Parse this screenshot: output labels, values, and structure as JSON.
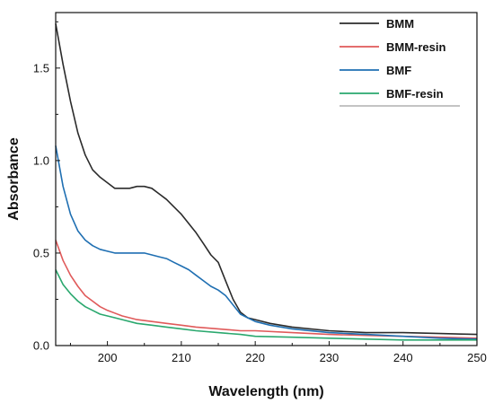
{
  "chart_data": {
    "type": "line",
    "xlabel": "Wavelength (nm)",
    "ylabel": "Absorbance",
    "xlim": [
      193,
      250
    ],
    "ylim": [
      0,
      1.8
    ],
    "xticks": [
      200,
      210,
      220,
      230,
      240,
      250
    ],
    "yticks": [
      0.0,
      0.5,
      1.0,
      1.5
    ],
    "xtick_labels": [
      "200",
      "210",
      "220",
      "230",
      "240",
      "250"
    ],
    "ytick_labels": [
      "0.0",
      "0.5",
      "1.0",
      "1.5"
    ],
    "grid": false,
    "legend_position": "top-right",
    "series": [
      {
        "name": "BMM",
        "color": "#2b2b2b",
        "x": [
          193,
          194,
          195,
          196,
          197,
          198,
          199,
          200,
          201,
          202,
          203,
          204,
          205,
          206,
          207,
          208,
          209,
          210,
          211,
          212,
          213,
          214,
          215,
          216,
          217,
          218,
          219,
          220,
          222,
          225,
          230,
          235,
          240,
          245,
          250
        ],
        "y": [
          1.74,
          1.52,
          1.32,
          1.15,
          1.03,
          0.95,
          0.91,
          0.88,
          0.85,
          0.85,
          0.85,
          0.86,
          0.86,
          0.85,
          0.82,
          0.79,
          0.75,
          0.71,
          0.66,
          0.61,
          0.55,
          0.49,
          0.45,
          0.35,
          0.25,
          0.18,
          0.15,
          0.14,
          0.12,
          0.1,
          0.08,
          0.07,
          0.07,
          0.065,
          0.06
        ]
      },
      {
        "name": "BMM-resin",
        "color": "#e05a5a",
        "x": [
          193,
          194,
          195,
          196,
          197,
          198,
          199,
          200,
          202,
          204,
          206,
          208,
          210,
          212,
          215,
          218,
          220,
          225,
          230,
          235,
          240,
          245,
          250
        ],
        "y": [
          0.57,
          0.46,
          0.38,
          0.32,
          0.27,
          0.24,
          0.21,
          0.19,
          0.16,
          0.14,
          0.13,
          0.12,
          0.11,
          0.1,
          0.09,
          0.08,
          0.08,
          0.07,
          0.06,
          0.055,
          0.05,
          0.045,
          0.04
        ]
      },
      {
        "name": "BMF",
        "color": "#1f6fb2",
        "x": [
          193,
          194,
          195,
          196,
          197,
          198,
          199,
          200,
          201,
          202,
          203,
          204,
          205,
          206,
          207,
          208,
          209,
          210,
          211,
          212,
          213,
          214,
          215,
          216,
          217,
          218,
          219,
          220,
          222,
          225,
          230,
          235,
          240,
          245,
          250
        ],
        "y": [
          1.08,
          0.86,
          0.71,
          0.62,
          0.57,
          0.54,
          0.52,
          0.51,
          0.5,
          0.5,
          0.5,
          0.5,
          0.5,
          0.49,
          0.48,
          0.47,
          0.45,
          0.43,
          0.41,
          0.38,
          0.35,
          0.32,
          0.3,
          0.27,
          0.22,
          0.17,
          0.15,
          0.13,
          0.11,
          0.09,
          0.07,
          0.06,
          0.05,
          0.04,
          0.035
        ]
      },
      {
        "name": "BMF-resin",
        "color": "#2aa86e",
        "x": [
          193,
          194,
          195,
          196,
          197,
          198,
          199,
          200,
          202,
          204,
          206,
          208,
          210,
          212,
          215,
          218,
          220,
          225,
          230,
          235,
          240,
          245,
          250
        ],
        "y": [
          0.41,
          0.33,
          0.28,
          0.24,
          0.21,
          0.19,
          0.17,
          0.16,
          0.14,
          0.12,
          0.11,
          0.1,
          0.09,
          0.08,
          0.07,
          0.06,
          0.05,
          0.045,
          0.04,
          0.035,
          0.03,
          0.03,
          0.03
        ]
      }
    ]
  }
}
